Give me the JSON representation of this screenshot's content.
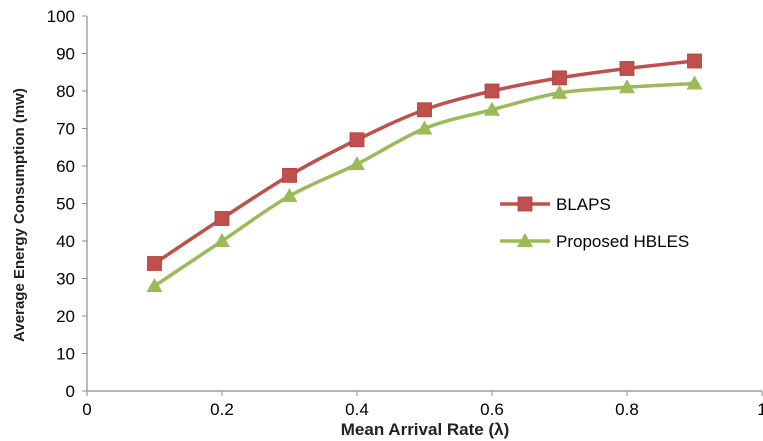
{
  "chart_data": {
    "type": "line",
    "title": "",
    "xlabel": "Mean Arrival Rate (λ)",
    "ylabel": "Average Energy Consumption (mw)",
    "xlim": [
      0,
      1
    ],
    "ylim": [
      0,
      100
    ],
    "x_ticks": [
      "0",
      "0.2",
      "0.4",
      "0.6",
      "0.8",
      "1"
    ],
    "y_ticks": [
      "0",
      "10",
      "20",
      "30",
      "40",
      "50",
      "60",
      "70",
      "80",
      "90",
      "100"
    ],
    "grid": false,
    "legend_position": "right",
    "x": [
      0.1,
      0.2,
      0.3,
      0.4,
      0.5,
      0.6,
      0.7,
      0.8,
      0.9
    ],
    "series": [
      {
        "name": "BLAPS",
        "color": "#c0504d",
        "marker": "square",
        "values": [
          34,
          46,
          57.5,
          67,
          75,
          80,
          83.5,
          86,
          88
        ]
      },
      {
        "name": "Proposed HBLES",
        "color": "#9bbb59",
        "marker": "triangle",
        "values": [
          28,
          40,
          52,
          60.5,
          70,
          75,
          79.5,
          81,
          82
        ]
      }
    ]
  }
}
